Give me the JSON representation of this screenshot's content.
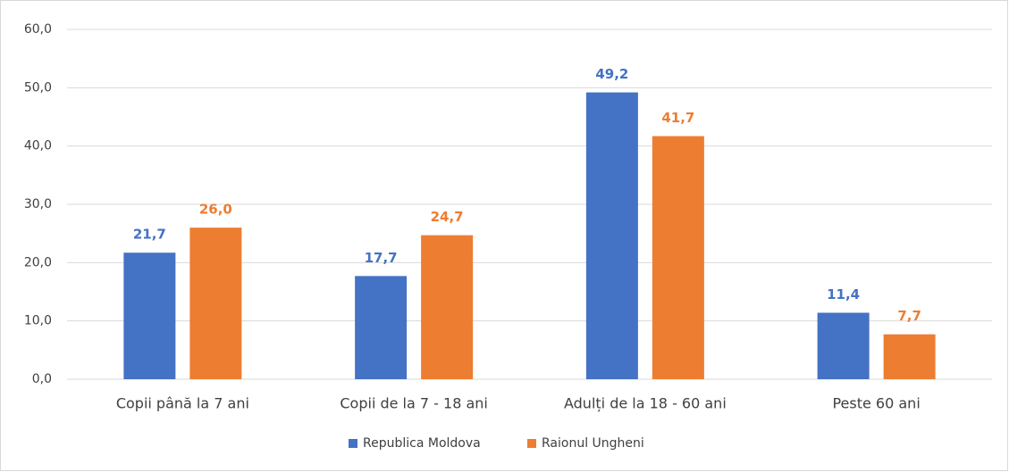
{
  "chart_data": {
    "type": "bar",
    "categories": [
      "Copii până la 7 ani",
      "Copii de la 7 - 18 ani",
      "Adulți de la 18 - 60 ani",
      "Peste 60 ani"
    ],
    "series": [
      {
        "name": "Republica Moldova",
        "color": "#4472c4",
        "values": [
          21.7,
          17.7,
          49.2,
          11.4
        ],
        "value_labels": [
          "21,7",
          "17,7",
          "49,2",
          "11,4"
        ]
      },
      {
        "name": "Raionul Ungheni",
        "color": "#ed7d31",
        "values": [
          26.0,
          24.7,
          41.7,
          7.7
        ],
        "value_labels": [
          "26,0",
          "24,7",
          "41,7",
          "7,7"
        ]
      }
    ],
    "ylim": [
      0,
      60
    ],
    "yticks": [
      {
        "value": 0,
        "label": "0,0"
      },
      {
        "value": 10,
        "label": "10,0"
      },
      {
        "value": 20,
        "label": "20,0"
      },
      {
        "value": 30,
        "label": "30,0"
      },
      {
        "value": 40,
        "label": "40,0"
      },
      {
        "value": 50,
        "label": "50,0"
      },
      {
        "value": 60,
        "label": "60,0"
      }
    ],
    "grid": true,
    "legend": "bottom"
  }
}
